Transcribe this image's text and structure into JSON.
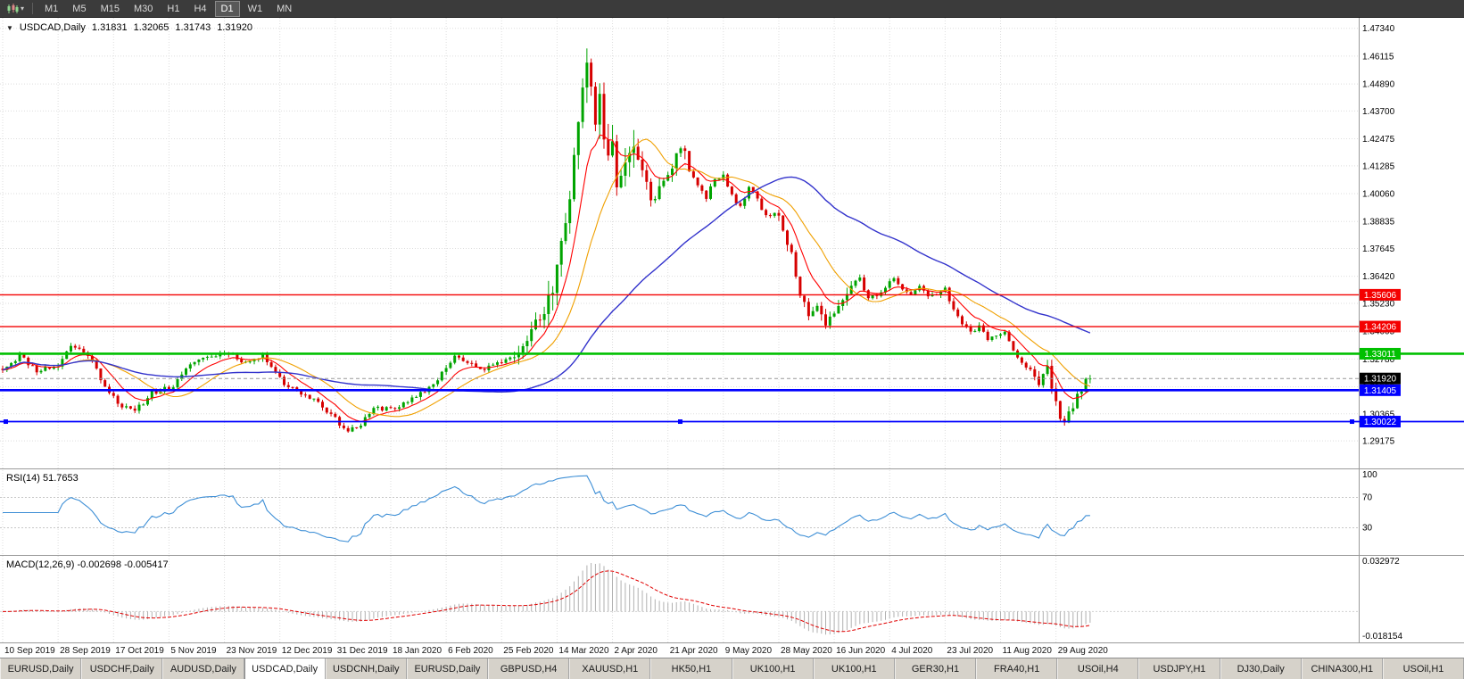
{
  "colors": {
    "up": "#00a400",
    "down": "#d60000",
    "grid": "#dedede",
    "separator": "#9a9a9a",
    "axis_text": "#000000",
    "current_badge_bg": "#000000",
    "badge_text": "#ffffff",
    "toolbar_bg": "#3b3b3b"
  },
  "toolbar": {
    "chart_icon": "candlestick-chart",
    "timeframes": [
      "M1",
      "M5",
      "M15",
      "M30",
      "H1",
      "H4",
      "D1",
      "W1",
      "MN"
    ],
    "active": "D1"
  },
  "chart_header": {
    "dropdown_icon": "▼",
    "title": "USDCAD,Daily",
    "open": "1.31831",
    "high": "1.32065",
    "low": "1.31743",
    "close": "1.31920"
  },
  "chart_data": {
    "type": "candlestick",
    "symbol": "USDCAD",
    "timeframe": "Daily",
    "candles": 256,
    "seed": 11,
    "ylim": [
      1.28,
      1.478
    ],
    "y_ticks": [
      "1.47340",
      "1.46115",
      "1.44890",
      "1.43700",
      "1.42475",
      "1.41285",
      "1.40060",
      "1.38835",
      "1.37645",
      "1.36420",
      "1.35230",
      "1.34005",
      "1.32780",
      "1.31555",
      "1.30365",
      "1.29175"
    ],
    "x_labels": [
      "10 Sep 2019",
      "28 Sep 2019",
      "17 Oct 2019",
      "5 Nov 2019",
      "23 Nov 2019",
      "12 Dec 2019",
      "31 Dec 2019",
      "18 Jan 2020",
      "6 Feb 2020",
      "25 Feb 2020",
      "14 Mar 2020",
      "2 Apr 2020",
      "21 Apr 2020",
      "9 May 2020",
      "28 May 2020",
      "16 Jun 2020",
      "4 Jul 2020",
      "23 Jul 2020",
      "11 Aug 2020",
      "29 Aug 2020"
    ],
    "x_label_step": 13,
    "price_anchors": [
      [
        0,
        1.3235
      ],
      [
        4,
        1.3292
      ],
      [
        8,
        1.3228
      ],
      [
        13,
        1.3248
      ],
      [
        16,
        1.3338
      ],
      [
        20,
        1.33
      ],
      [
        24,
        1.316
      ],
      [
        28,
        1.3068
      ],
      [
        31,
        1.3045
      ],
      [
        35,
        1.313
      ],
      [
        40,
        1.3158
      ],
      [
        45,
        1.3272
      ],
      [
        50,
        1.3295
      ],
      [
        53,
        1.3308
      ],
      [
        57,
        1.3262
      ],
      [
        61,
        1.3292
      ],
      [
        64,
        1.323
      ],
      [
        66,
        1.3168
      ],
      [
        70,
        1.3128
      ],
      [
        74,
        1.3092
      ],
      [
        78,
        1.3012
      ],
      [
        81,
        1.2962
      ],
      [
        84,
        1.2988
      ],
      [
        87,
        1.3058
      ],
      [
        93,
        1.3068
      ],
      [
        97,
        1.3108
      ],
      [
        101,
        1.3168
      ],
      [
        104,
        1.3242
      ],
      [
        106,
        1.3292
      ],
      [
        109,
        1.3258
      ],
      [
        112,
        1.3232
      ],
      [
        115,
        1.3248
      ],
      [
        119,
        1.3288
      ],
      [
        122,
        1.3362
      ],
      [
        125,
        1.3425
      ],
      [
        128,
        1.3512
      ],
      [
        130,
        1.3645
      ],
      [
        132,
        1.3888
      ],
      [
        134,
        1.4158
      ],
      [
        136,
        1.4488
      ],
      [
        137,
        1.4625
      ],
      [
        138,
        1.4498
      ],
      [
        139,
        1.4308
      ],
      [
        140,
        1.4445
      ],
      [
        141,
        1.4255
      ],
      [
        142,
        1.4158
      ],
      [
        143,
        1.4225
      ],
      [
        144,
        1.4062
      ],
      [
        145,
        1.4085
      ],
      [
        146,
        1.4145
      ],
      [
        148,
        1.4192
      ],
      [
        150,
        1.4092
      ],
      [
        152,
        1.3992
      ],
      [
        154,
        1.4025
      ],
      [
        156,
        1.4085
      ],
      [
        158,
        1.4172
      ],
      [
        159,
        1.4232
      ],
      [
        161,
        1.4112
      ],
      [
        163,
        1.4032
      ],
      [
        165,
        1.3992
      ],
      [
        167,
        1.4062
      ],
      [
        169,
        1.4092
      ],
      [
        171,
        1.3992
      ],
      [
        173,
        1.3952
      ],
      [
        175,
        1.4032
      ],
      [
        177,
        1.3982
      ],
      [
        179,
        1.3905
      ],
      [
        181,
        1.3932
      ],
      [
        183,
        1.3842
      ],
      [
        185,
        1.3752
      ],
      [
        187,
        1.3572
      ],
      [
        189,
        1.3482
      ],
      [
        191,
        1.3522
      ],
      [
        193,
        1.3442
      ],
      [
        195,
        1.3472
      ],
      [
        197,
        1.3552
      ],
      [
        199,
        1.3592
      ],
      [
        201,
        1.3632
      ],
      [
        203,
        1.3542
      ],
      [
        205,
        1.3562
      ],
      [
        207,
        1.3602
      ],
      [
        209,
        1.3632
      ],
      [
        211,
        1.3582
      ],
      [
        213,
        1.3552
      ],
      [
        215,
        1.3602
      ],
      [
        217,
        1.3548
      ],
      [
        219,
        1.3568
      ],
      [
        221,
        1.3582
      ],
      [
        223,
        1.3502
      ],
      [
        225,
        1.3422
      ],
      [
        227,
        1.3402
      ],
      [
        229,
        1.3422
      ],
      [
        231,
        1.3352
      ],
      [
        233,
        1.3382
      ],
      [
        235,
        1.3402
      ],
      [
        237,
        1.3312
      ],
      [
        239,
        1.3262
      ],
      [
        241,
        1.3222
      ],
      [
        243,
        1.3172
      ],
      [
        245,
        1.3242
      ],
      [
        247,
        1.3072
      ],
      [
        249,
        1.2996
      ],
      [
        251,
        1.3072
      ],
      [
        253,
        1.3152
      ],
      [
        255,
        1.3192
      ]
    ],
    "volatility_zones": [
      {
        "from": 0,
        "to": 255,
        "v": 0.0016
      },
      {
        "from": 120,
        "to": 160,
        "v": 0.0045
      },
      {
        "from": 128,
        "to": 148,
        "v": 0.0085
      },
      {
        "from": 182,
        "to": 199,
        "v": 0.0032
      },
      {
        "from": 240,
        "to": 255,
        "v": 0.003
      }
    ],
    "moving_averages": [
      {
        "name": "ma-fast",
        "type": "ema",
        "period": 9,
        "color": "#ff0000",
        "width": 1.1
      },
      {
        "name": "ma-mid",
        "type": "sma",
        "period": 18,
        "color": "#f0a000",
        "width": 1.1
      },
      {
        "name": "ma-slow",
        "type": "sma",
        "period": 55,
        "color": "#3333cc",
        "width": 1.4
      }
    ],
    "levels": [
      {
        "label": "1.35606",
        "value": 1.35606,
        "color": "#f40000",
        "width": 1.4,
        "selected": false,
        "full_width": false
      },
      {
        "label": "1.34206",
        "value": 1.34206,
        "color": "#f40000",
        "width": 1.4,
        "selected": false,
        "full_width": false
      },
      {
        "label": "1.33011",
        "value": 1.33011,
        "color": "#00c000",
        "width": 2.6,
        "selected": false,
        "full_width": true
      },
      {
        "label": "1.31405",
        "value": 1.31405,
        "color": "#0000ff",
        "width": 2.6,
        "selected": false,
        "full_width": false
      },
      {
        "label": "1.30022",
        "value": 1.30022,
        "color": "#0000ff",
        "width": 1.8,
        "selected": true,
        "full_width": true
      }
    ],
    "current_price": {
      "label": "1.31920",
      "value": 1.3192
    },
    "indicators": {
      "rsi": {
        "label": "RSI(14) 51.7653",
        "period": 14,
        "current": "51.7653",
        "axis_ticks": [
          "100",
          "70",
          "30"
        ],
        "axis_values": [
          100,
          70,
          30
        ],
        "level_lines": [
          70,
          30
        ],
        "color": "#3e8fd6"
      },
      "macd": {
        "label": "MACD(12,26,9) -0.002698 -0.005417",
        "fast": 12,
        "slow": 26,
        "signal": 9,
        "current": [
          "-0.002698",
          "-0.005417"
        ],
        "axis_max": "0.032972",
        "axis_min": "-0.018154",
        "hist_color": "#b0b0b0",
        "signal_color": "#e00000"
      }
    }
  },
  "tabs": [
    {
      "label": "EURUSD,Daily",
      "active": false
    },
    {
      "label": "USDCHF,Daily",
      "active": false
    },
    {
      "label": "AUDUSD,Daily",
      "active": false
    },
    {
      "label": "USDCAD,Daily",
      "active": true
    },
    {
      "label": "USDCNH,Daily",
      "active": false
    },
    {
      "label": "EURUSD,Daily",
      "active": false
    },
    {
      "label": "GBPUSD,H4",
      "active": false
    },
    {
      "label": "XAUUSD,H1",
      "active": false
    },
    {
      "label": "HK50,H1",
      "active": false
    },
    {
      "label": "UK100,H1",
      "active": false
    },
    {
      "label": "UK100,H1",
      "active": false
    },
    {
      "label": "GER30,H1",
      "active": false
    },
    {
      "label": "FRA40,H1",
      "active": false
    },
    {
      "label": "USOil,H4",
      "active": false
    },
    {
      "label": "USDJPY,H1",
      "active": false
    },
    {
      "label": "DJ30,Daily",
      "active": false
    },
    {
      "label": "CHINA300,H1",
      "active": false
    },
    {
      "label": "USOil,H1",
      "active": false
    }
  ]
}
